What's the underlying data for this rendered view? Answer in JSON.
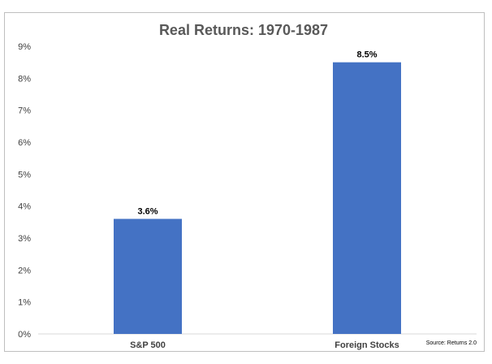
{
  "chart_data": {
    "type": "bar",
    "title": "Real Returns: 1970-1987",
    "categories": [
      "S&P 500",
      "Foreign Stocks"
    ],
    "values": [
      3.6,
      8.5
    ],
    "data_labels": [
      "3.6%",
      "8.5%"
    ],
    "xlabel": "",
    "ylabel": "",
    "ylim": [
      0,
      9
    ],
    "y_ticks": [
      "0%",
      "1%",
      "2%",
      "3%",
      "4%",
      "5%",
      "6%",
      "7%",
      "8%",
      "9%"
    ],
    "grid": false,
    "legend": "none",
    "bar_color": "#4472c4",
    "source": "Source: Returns 2.0"
  }
}
